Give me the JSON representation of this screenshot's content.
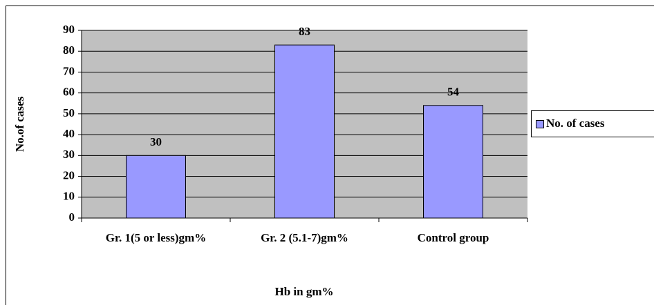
{
  "chart_data": {
    "type": "bar",
    "categories": [
      "Gr. 1(5 or less)gm%",
      "Gr. 2 (5.1-7)gm%",
      "Control group"
    ],
    "series": [
      {
        "name": "No. of cases",
        "color": "#9999ff",
        "values": [
          30,
          83,
          54
        ]
      }
    ],
    "x_label": "Hb in gm%",
    "y_label": "No.of cases",
    "ylim": [
      0,
      90
    ],
    "yticks": [
      0,
      10,
      20,
      30,
      40,
      50,
      60,
      70,
      80,
      90
    ],
    "grid": true,
    "legend": "right"
  }
}
